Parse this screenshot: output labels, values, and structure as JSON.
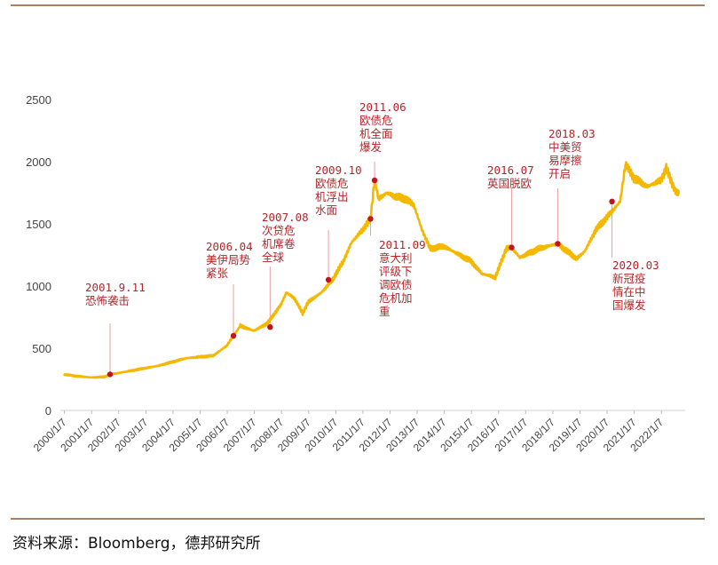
{
  "chart_data": {
    "type": "line",
    "title": "",
    "xlabel": "",
    "ylabel": "",
    "ylim": [
      0,
      2500
    ],
    "yticks": [
      0,
      500,
      1000,
      1500,
      2000,
      2500
    ],
    "grid": false,
    "line_color": "#f5b800",
    "marker_color": "#c0141e",
    "annotation_color": "#b3262a",
    "x_ticks": [
      "2000/1/7",
      "2001/1/7",
      "2002/1/7",
      "2003/1/7",
      "2004/1/7",
      "2005/1/7",
      "2006/1/7",
      "2007/1/7",
      "2008/1/7",
      "2009/1/7",
      "2010/1/7",
      "2011/1/7",
      "2012/1/7",
      "2013/1/7",
      "2014/1/7",
      "2015/1/7",
      "2016/1/7",
      "2017/1/7",
      "2018/1/7",
      "2019/1/7",
      "2020/1/7",
      "2021/1/7",
      "2022/1/7"
    ],
    "series": [
      {
        "name": "",
        "x": [
          2000.0,
          2000.5,
          2001.0,
          2001.5,
          2001.7,
          2002.0,
          2002.5,
          2003.0,
          2003.5,
          2004.0,
          2004.5,
          2005.0,
          2005.5,
          2006.0,
          2006.25,
          2006.5,
          2007.0,
          2007.5,
          2008.0,
          2008.2,
          2008.5,
          2008.8,
          2009.0,
          2009.5,
          2009.9,
          2010.3,
          2010.6,
          2011.0,
          2011.3,
          2011.45,
          2011.6,
          2011.9,
          2012.2,
          2012.6,
          2012.9,
          2013.2,
          2013.5,
          2014.0,
          2014.5,
          2015.0,
          2015.4,
          2015.9,
          2016.3,
          2016.5,
          2016.8,
          2017.0,
          2017.5,
          2018.0,
          2018.2,
          2018.6,
          2018.9,
          2019.2,
          2019.6,
          2020.0,
          2020.2,
          2020.5,
          2020.7,
          2021.0,
          2021.5,
          2022.0,
          2022.2,
          2022.4,
          2022.55,
          2022.65
        ],
        "y": [
          290,
          275,
          265,
          270,
          290,
          300,
          320,
          340,
          360,
          390,
          420,
          430,
          440,
          520,
          600,
          680,
          640,
          700,
          850,
          950,
          900,
          780,
          870,
          950,
          1050,
          1200,
          1350,
          1450,
          1540,
          1850,
          1700,
          1750,
          1720,
          1700,
          1650,
          1450,
          1300,
          1320,
          1260,
          1200,
          1100,
          1070,
          1300,
          1310,
          1230,
          1250,
          1300,
          1330,
          1340,
          1270,
          1220,
          1280,
          1450,
          1550,
          1600,
          1680,
          1980,
          1870,
          1800,
          1850,
          1950,
          1830,
          1760,
          1740
        ]
      }
    ],
    "annotations": [
      {
        "x": 2001.7,
        "y": 290,
        "lines": [
          "2001.9.11",
          "恐怖袭击"
        ]
      },
      {
        "x": 2006.25,
        "y": 600,
        "lines": [
          "2006.04",
          "美伊局势",
          "紧张"
        ]
      },
      {
        "x": 2007.6,
        "y": 670,
        "lines": [
          "2007.08",
          "次贷危",
          "机席卷",
          "全球"
        ]
      },
      {
        "x": 2009.75,
        "y": 1050,
        "lines": [
          "2009.10",
          "欧债危",
          "机浮出",
          "水面"
        ]
      },
      {
        "x": 2011.45,
        "y": 1850,
        "lines": [
          "2011.06",
          "欧债危",
          "机全面",
          "爆发"
        ]
      },
      {
        "x": 2011.3,
        "y": 1540,
        "lines": [
          "2011.09",
          "意大利",
          "评级下",
          "调欧债",
          "危机加",
          "重"
        ]
      },
      {
        "x": 2016.5,
        "y": 1310,
        "lines": [
          "2016.07",
          "英国脱欧"
        ]
      },
      {
        "x": 2018.2,
        "y": 1340,
        "lines": [
          "2018.03",
          "中美贸",
          "易摩擦",
          "开启"
        ]
      },
      {
        "x": 2020.2,
        "y": 1680,
        "lines": [
          "2020.03",
          "新冠疫",
          "情在中",
          "国爆发"
        ]
      }
    ]
  },
  "source_text": "资料来源：Bloomberg，德邦研究所"
}
